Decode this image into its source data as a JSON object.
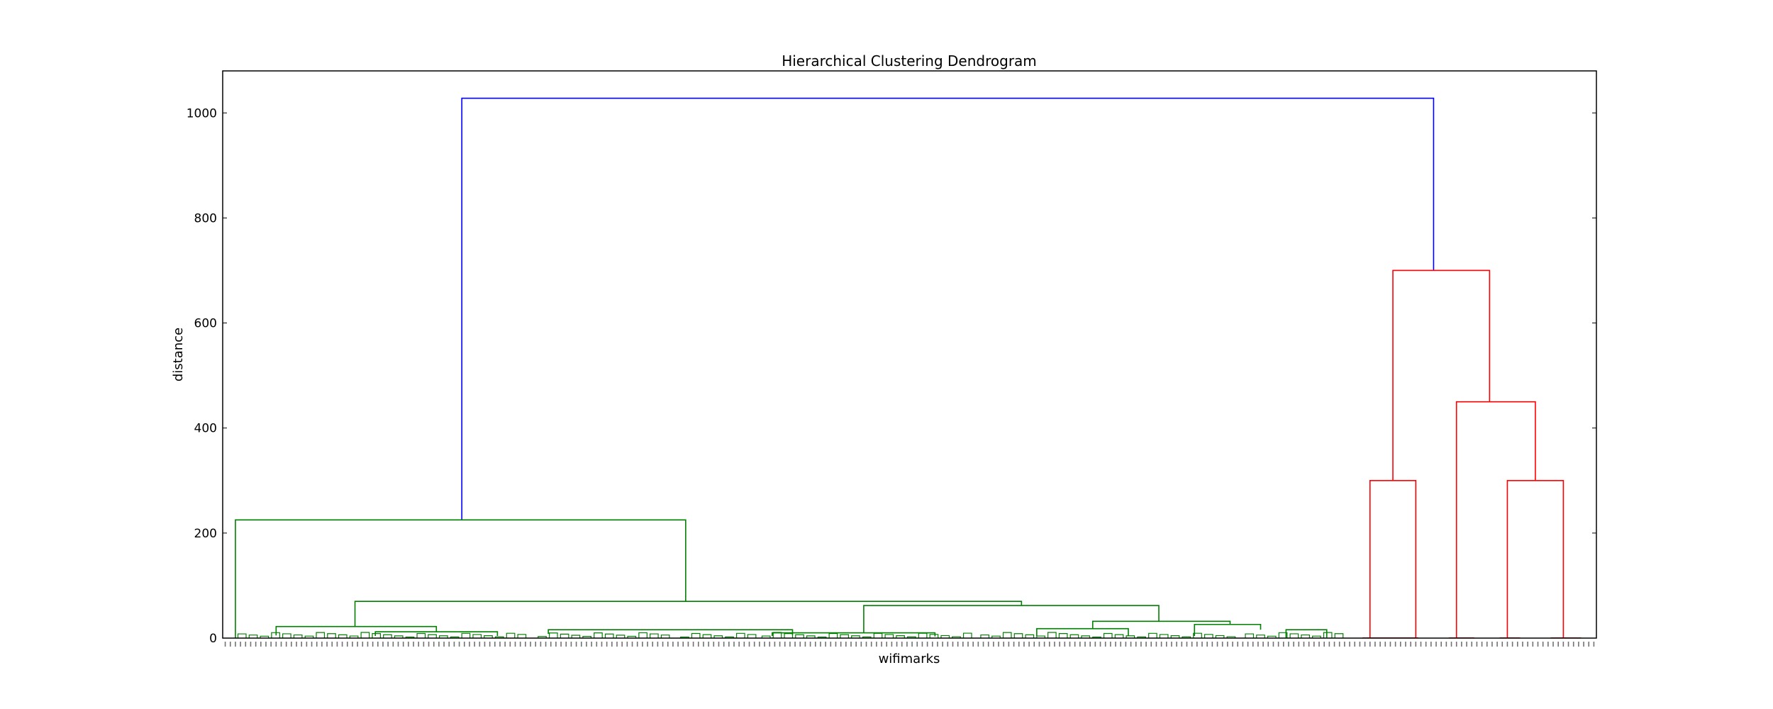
{
  "chart_data": {
    "type": "dendrogram",
    "title": "Hierarchical Clustering Dendrogram",
    "xlabel": "wifimarks",
    "ylabel": "distance",
    "ylim": [
      0,
      1080
    ],
    "yticks": [
      0,
      200,
      400,
      600,
      800,
      1000
    ],
    "grid": false,
    "leaf_count": 270,
    "leaf_xlim": [
      0,
      270
    ],
    "colors": {
      "root": "#0000ff",
      "cluster_a": "#008000",
      "cluster_b": "#ff0000",
      "leaf_label": "#000000"
    },
    "links": [
      {
        "x": [
          47,
          47,
          238,
          238
        ],
        "y": [
          225,
          1028,
          1028,
          700
        ],
        "color": "root"
      },
      {
        "x": [
          2.5,
          2.5,
          91,
          91
        ],
        "y": [
          0,
          225,
          225,
          70
        ],
        "color": "cluster_a"
      },
      {
        "x": [
          26,
          26,
          157,
          157
        ],
        "y": [
          22,
          70,
          70,
          62
        ],
        "color": "cluster_a"
      },
      {
        "x": [
          10.5,
          10.5,
          42,
          42
        ],
        "y": [
          5,
          22,
          22,
          12
        ],
        "color": "cluster_a"
      },
      {
        "x": [
          30,
          30,
          54,
          54
        ],
        "y": [
          4,
          12,
          12,
          4
        ],
        "color": "cluster_a"
      },
      {
        "x": [
          64,
          64,
          112,
          112
        ],
        "y": [
          8,
          16,
          16,
          6
        ],
        "color": "cluster_a"
      },
      {
        "x": [
          126,
          126,
          184,
          184
        ],
        "y": [
          10,
          62,
          62,
          32
        ],
        "color": "cluster_a"
      },
      {
        "x": [
          108,
          108,
          140,
          140
        ],
        "y": [
          4,
          10,
          10,
          3
        ],
        "color": "cluster_a"
      },
      {
        "x": [
          171,
          171,
          198,
          198
        ],
        "y": [
          18,
          32,
          32,
          26
        ],
        "color": "cluster_a"
      },
      {
        "x": [
          160,
          160,
          178,
          178
        ],
        "y": [
          4,
          18,
          18,
          4
        ],
        "color": "cluster_a"
      },
      {
        "x": [
          191,
          191,
          204,
          204
        ],
        "y": [
          4,
          26,
          26,
          16
        ],
        "color": "cluster_a"
      },
      {
        "x": [
          209,
          209,
          217,
          217
        ],
        "y": [
          1,
          16,
          16,
          1
        ],
        "color": "cluster_a"
      },
      {
        "x": [
          230,
          230,
          249,
          249
        ],
        "y": [
          300,
          700,
          700,
          450
        ],
        "color": "cluster_b"
      },
      {
        "x": [
          225.5,
          225.5,
          234.5,
          234.5
        ],
        "y": [
          0,
          300,
          300,
          0
        ],
        "color": "cluster_b"
      },
      {
        "x": [
          242.5,
          242.5,
          258,
          258
        ],
        "y": [
          0,
          450,
          450,
          300
        ],
        "color": "cluster_b"
      },
      {
        "x": [
          252.5,
          252.5,
          263.5,
          263.5
        ],
        "y": [
          0,
          300,
          300,
          0
        ],
        "color": "cluster_b"
      }
    ]
  }
}
